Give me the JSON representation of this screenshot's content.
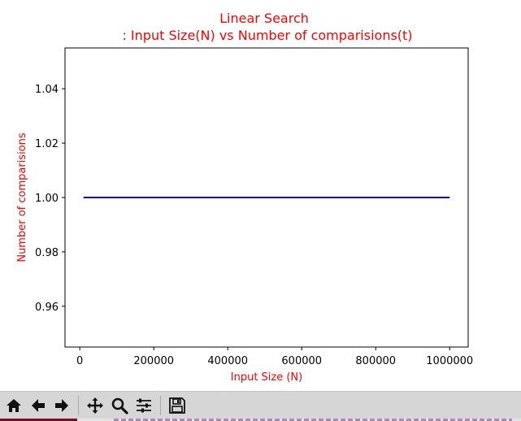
{
  "chart_data": {
    "type": "line",
    "title": "Linear Search",
    "subtitle": ": Input Size(N) vs Number of comparisions(t)",
    "xlabel": "Input Size (N)",
    "ylabel": "Number of comparisions",
    "xlim": [
      -40000,
      1050000
    ],
    "ylim": [
      0.945,
      1.055
    ],
    "xticks": [
      0,
      200000,
      400000,
      600000,
      800000,
      1000000
    ],
    "xtick_labels": [
      "0",
      "200000",
      "400000",
      "600000",
      "800000",
      "1000000"
    ],
    "yticks": [
      0.96,
      0.98,
      1.0,
      1.02,
      1.04
    ],
    "ytick_labels": [
      "0.96",
      "0.98",
      "1.00",
      "1.02",
      "1.04"
    ],
    "grid": false,
    "series": [
      {
        "color": "#0000cc",
        "x": [
          10000,
          1000000
        ],
        "y": [
          1.0,
          1.0
        ]
      }
    ],
    "title_color": "#ff0000",
    "label_color": "#ff0000"
  },
  "toolbar": {
    "buttons": [
      {
        "icon": "home-icon",
        "title": "Home"
      },
      {
        "icon": "back-arrow-icon",
        "title": "Back"
      },
      {
        "icon": "forward-arrow-icon",
        "title": "Forward"
      },
      {
        "icon": "pan-icon",
        "title": "Pan"
      },
      {
        "icon": "zoom-icon",
        "title": "Zoom"
      },
      {
        "icon": "configure-subplots-icon",
        "title": "Subplots"
      },
      {
        "icon": "save-icon",
        "title": "Save"
      }
    ]
  }
}
